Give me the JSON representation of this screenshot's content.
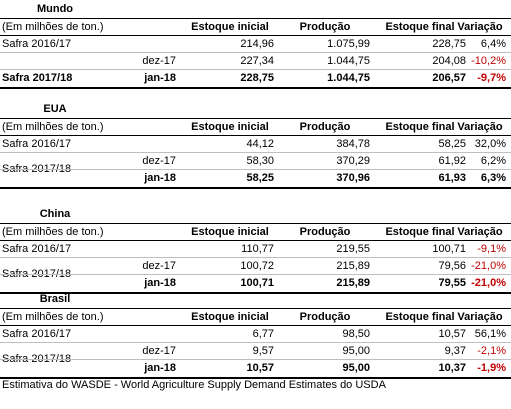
{
  "sections": [
    {
      "title": "Mundo",
      "unit": "(Em milhões de ton.)",
      "headers": [
        "Estoque inicial",
        "Produção",
        "Estoque final",
        "Variação"
      ],
      "rows": [
        {
          "label": "Safra 2016/17",
          "cells": [
            "214,96",
            "1.075,99",
            "228,75",
            "6,4%"
          ]
        },
        {
          "label": "Safra 2017/18",
          "subrows": [
            {
              "label": "dez-17",
              "cells": [
                "227,34",
                "1.044,75",
                "204,08",
                "-10,2%"
              ]
            },
            {
              "label": "jan-18",
              "cells": [
                "228,75",
                "1.044,75",
                "206,57",
                "-9,7%"
              ]
            }
          ]
        }
      ]
    },
    {
      "title": "EUA",
      "unit": "(Em milhões de ton.)",
      "headers": [
        "Estoque inicial",
        "Produção",
        "Estoque final",
        "Variação"
      ],
      "rows": [
        {
          "label": "Safra 2016/17",
          "cells": [
            "44,12",
            "384,78",
            "58,25",
            "32,0%"
          ]
        },
        {
          "label": "Safra 2017/18",
          "subrows": [
            {
              "label": "dez-17",
              "cells": [
                "58,30",
                "370,29",
                "61,92",
                "6,2%"
              ]
            },
            {
              "label": "jan-18",
              "cells": [
                "58,25",
                "370,96",
                "61,93",
                "6,3%"
              ]
            }
          ]
        }
      ]
    },
    {
      "title": "China",
      "unit": "(Em milhões de ton.)",
      "headers": [
        "Estoque inicial",
        "Produção",
        "Estoque final",
        "Variação"
      ],
      "rows": [
        {
          "label": "Safra 2016/17",
          "cells": [
            "110,77",
            "219,55",
            "100,71",
            "-9,1%"
          ]
        },
        {
          "label": "Safra 2017/18",
          "subrows": [
            {
              "label": "dez-17",
              "cells": [
                "100,72",
                "215,89",
                "79,56",
                "-21,0%"
              ]
            },
            {
              "label": "jan-18",
              "cells": [
                "100,71",
                "215,89",
                "79,55",
                "-21,0%"
              ]
            }
          ]
        }
      ]
    },
    {
      "title": "Brasil",
      "unit": "(Em milhões de ton.)",
      "headers": [
        "Estoque inicial",
        "Produção",
        "Estoque final",
        "Variação"
      ],
      "rows": [
        {
          "label": "Safra 2016/17",
          "cells": [
            "6,77",
            "98,50",
            "10,57",
            "56,1%"
          ]
        },
        {
          "label": "Safra 2017/18",
          "subrows": [
            {
              "label": "dez-17",
              "cells": [
                "9,57",
                "95,00",
                "9,37",
                "-2,1%"
              ]
            },
            {
              "label": "jan-18",
              "cells": [
                "10,57",
                "95,00",
                "10,37",
                "-1,9%"
              ]
            }
          ]
        }
      ]
    }
  ],
  "footnote": "Estimativa do WASDE - World Agriculture Supply Demand Estimates do USDA"
}
